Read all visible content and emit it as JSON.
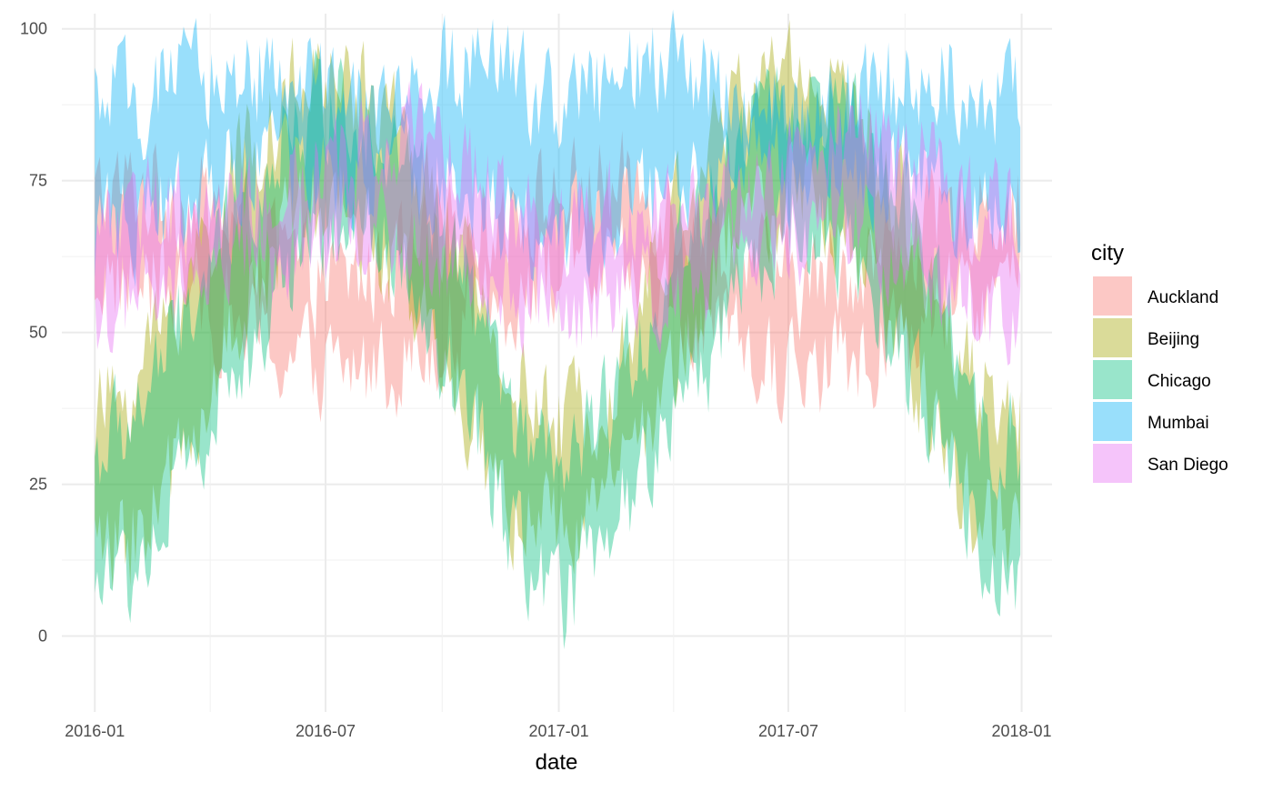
{
  "chart_data": {
    "type": "area",
    "title": "",
    "xlabel": "date",
    "ylabel": "",
    "xlim": [
      "2015-12-06",
      "2018-01-25"
    ],
    "ylim": [
      -12.5,
      102.5
    ],
    "x_ticks": [
      "2016-01",
      "2016-07",
      "2017-01",
      "2017-07",
      "2018-01"
    ],
    "y_ticks": [
      0,
      25,
      50,
      75,
      100
    ],
    "grid": true,
    "legend": {
      "title": "city",
      "placement": "right"
    },
    "x_anchor_dates": [
      "2016-01-01",
      "2016-02-01",
      "2016-03-01",
      "2016-04-01",
      "2016-05-01",
      "2016-06-01",
      "2016-07-01",
      "2016-08-01",
      "2016-09-01",
      "2016-10-01",
      "2016-11-01",
      "2016-12-01",
      "2017-01-01",
      "2017-02-01",
      "2017-03-01",
      "2017-04-01",
      "2017-05-01",
      "2017-06-01",
      "2017-07-01",
      "2017-08-01",
      "2017-09-01",
      "2017-10-01",
      "2017-11-01",
      "2017-12-01",
      "2018-01-01"
    ],
    "series": [
      {
        "name": "Auckland",
        "color": "#F8766D",
        "low": [
          60,
          58,
          57,
          55,
          50,
          46,
          44,
          44,
          46,
          50,
          53,
          57,
          60,
          60,
          58,
          54,
          49,
          45,
          44,
          44,
          46,
          50,
          53,
          57,
          58
        ],
        "high": [
          72,
          74,
          73,
          70,
          67,
          62,
          58,
          59,
          62,
          65,
          68,
          71,
          72,
          74,
          74,
          71,
          66,
          62,
          58,
          59,
          62,
          65,
          68,
          71,
          70
        ]
      },
      {
        "name": "Beijing",
        "color": "#A3A500",
        "low": [
          14,
          16,
          26,
          42,
          56,
          67,
          70,
          68,
          58,
          44,
          30,
          20,
          16,
          18,
          28,
          44,
          58,
          68,
          72,
          70,
          60,
          46,
          30,
          18,
          16
        ],
        "high": [
          36,
          42,
          54,
          66,
          80,
          88,
          92,
          90,
          82,
          68,
          54,
          40,
          34,
          40,
          52,
          68,
          82,
          90,
          95,
          92,
          82,
          70,
          54,
          40,
          38
        ]
      },
      {
        "name": "Chicago",
        "color": "#00BF7D",
        "low": [
          8,
          10,
          22,
          34,
          46,
          60,
          68,
          66,
          58,
          44,
          30,
          14,
          4,
          14,
          24,
          36,
          46,
          60,
          68,
          66,
          58,
          44,
          32,
          16,
          4
        ],
        "high": [
          30,
          36,
          48,
          60,
          72,
          84,
          88,
          86,
          80,
          66,
          52,
          32,
          26,
          34,
          46,
          62,
          74,
          86,
          88,
          86,
          82,
          70,
          54,
          36,
          30
        ]
      },
      {
        "name": "Mumbai",
        "color": "#00B0F6",
        "low": [
          66,
          68,
          70,
          74,
          78,
          78,
          76,
          76,
          76,
          76,
          72,
          68,
          66,
          68,
          70,
          74,
          78,
          78,
          76,
          76,
          76,
          76,
          72,
          68,
          66
        ],
        "high": [
          88,
          88,
          90,
          92,
          93,
          92,
          88,
          86,
          88,
          92,
          94,
          92,
          88,
          90,
          92,
          93,
          92,
          88,
          86,
          86,
          88,
          92,
          92,
          90,
          88
        ]
      },
      {
        "name": "San Diego",
        "color": "#E76BF3",
        "low": [
          54,
          55,
          56,
          58,
          60,
          63,
          66,
          68,
          67,
          63,
          58,
          55,
          54,
          55,
          56,
          58,
          60,
          63,
          66,
          68,
          67,
          63,
          58,
          55,
          54
        ],
        "high": [
          68,
          70,
          70,
          70,
          70,
          72,
          76,
          80,
          82,
          80,
          76,
          70,
          68,
          70,
          70,
          70,
          70,
          72,
          76,
          80,
          82,
          80,
          76,
          70,
          68
        ]
      }
    ]
  }
}
